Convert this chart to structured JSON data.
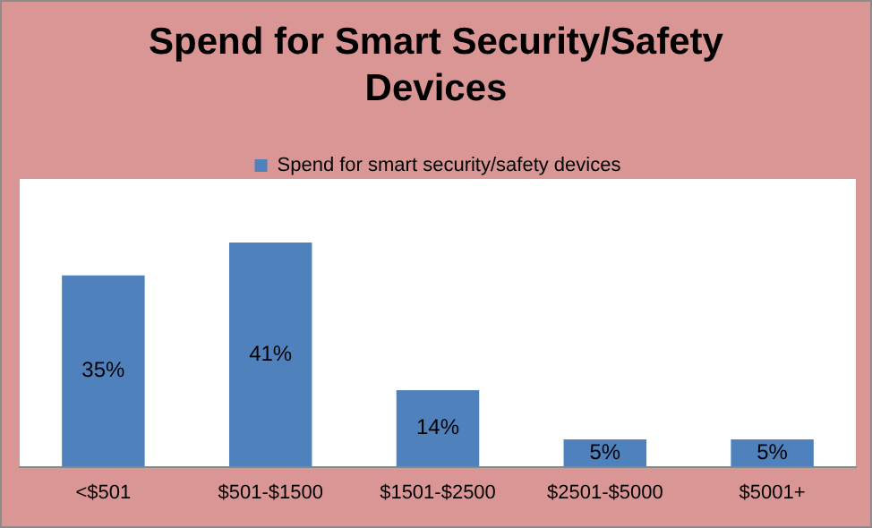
{
  "chart_data": {
    "type": "bar",
    "title": "Spend for Smart Security/Safety Devices",
    "categories": [
      "<$501",
      "$501-$1500",
      "$1501-$2500",
      "$2501-$5000",
      "$5001+"
    ],
    "series": [
      {
        "name": "Spend for smart security/safety devices",
        "color": "#4f81bd",
        "values": [
          35,
          41,
          14,
          5,
          5
        ],
        "value_labels": [
          "35%",
          "41%",
          "14%",
          "5%",
          "5%"
        ]
      }
    ],
    "legend": "top",
    "grid": false
  }
}
